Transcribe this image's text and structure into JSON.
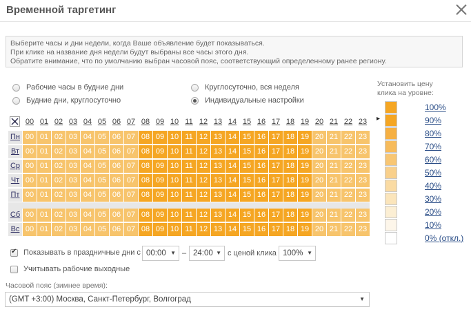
{
  "dialog": {
    "title": "Временной таргетинг"
  },
  "info_lines": [
    "Выберите часы и дни недели, когда Ваше объявление будет показываться.",
    "При клике на название дня недели будут выбраны все часы этого дня.",
    "Обратите внимание, что по умолчанию выбран часовой пояс, соответствующий определенному ранее региону."
  ],
  "presets": [
    {
      "label": "Рабочие часы в будние дни",
      "selected": false
    },
    {
      "label": "Будние дни, круглосуточно",
      "selected": false
    },
    {
      "label": "Круглосуточно, вся неделя",
      "selected": false
    },
    {
      "label": "Индивидуальные настройки",
      "selected": true
    }
  ],
  "grid": {
    "hours": [
      "00",
      "01",
      "02",
      "03",
      "04",
      "05",
      "06",
      "07",
      "08",
      "09",
      "10",
      "11",
      "12",
      "13",
      "14",
      "15",
      "16",
      "17",
      "18",
      "19",
      "20",
      "21",
      "22",
      "23"
    ],
    "days": [
      "Пн",
      "Вт",
      "Ср",
      "Чт",
      "Пт",
      "Сб",
      "Вс"
    ],
    "active_hours": [
      8,
      9,
      10,
      11,
      12,
      13,
      14,
      15,
      16,
      17,
      18,
      19
    ]
  },
  "price_panel": {
    "label": "Установить цену клика на уровне:",
    "levels": [
      "100%",
      "90%",
      "80%",
      "70%",
      "60%",
      "50%",
      "40%",
      "30%",
      "20%",
      "10%",
      "0% (откл.)"
    ],
    "marker": "▸"
  },
  "holidays": {
    "checkbox_label": "Показывать в праздничные дни с",
    "checked": true,
    "from": "00:00",
    "dash": "–",
    "to": "24:00",
    "price_label": "с ценой клика",
    "price": "100%"
  },
  "workdays": {
    "label": "Учитывать рабочие выходные",
    "checked": false
  },
  "timezone": {
    "label": "Часовой пояс (зимнее время):",
    "value": "(GMT +3:00) Москва, Санкт-Петербург, Волгоград"
  },
  "colors": {
    "cell_bright": "#f5a623",
    "cell_light": "#f7c46c",
    "header_bg": "#e7e7e7",
    "link": "#2a4d87"
  }
}
